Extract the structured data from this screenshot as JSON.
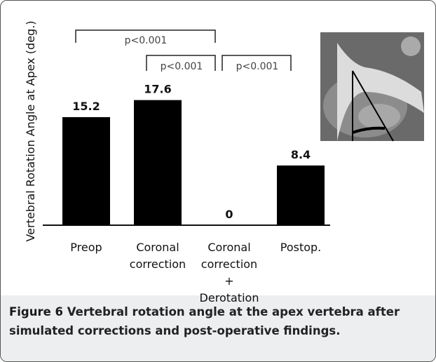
{
  "chart_data": {
    "type": "bar",
    "y_label": "Vertebral Rotation Angle at Apex (deg.)",
    "categories": [
      "Preop",
      "Coronal\ncorrection",
      "Coronal\ncorrection\n+\nDerotation",
      "Postop."
    ],
    "values": [
      15.2,
      17.6,
      0,
      8.4
    ],
    "color": "#000000",
    "ylim": [
      0,
      30
    ],
    "annotations": [
      "p<0.001",
      "p<0.001",
      "p<0.001"
    ]
  },
  "caption": {
    "label": "Figure 6",
    "text": "Vertebral rotation angle at the apex vertebra after simulated corrections and post-operative findings."
  }
}
